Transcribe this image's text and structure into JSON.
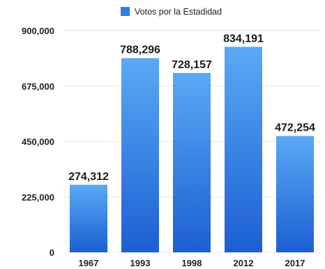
{
  "chart_data": {
    "type": "bar",
    "categories": [
      "1967",
      "1993",
      "1998",
      "2012",
      "2017"
    ],
    "series": [
      {
        "name": "Votos por la Estadidad",
        "values": [
          274312,
          788296,
          728157,
          834191,
          472254
        ],
        "value_labels": [
          "274,312",
          "788,296",
          "728,157",
          "834,191",
          "472,254"
        ]
      }
    ],
    "ylim": [
      0,
      900000
    ],
    "yticks": [
      0,
      225000,
      450000,
      675000,
      900000
    ],
    "ytick_labels": [
      "0",
      "225,000",
      "450,000",
      "675,000",
      "900,000"
    ],
    "grid": true,
    "legend_position": "top-center",
    "colors": {
      "bar_top": "#5aa9f5",
      "bar_bottom": "#1c5fd3",
      "legend_swatch": "#2b7de9"
    }
  }
}
